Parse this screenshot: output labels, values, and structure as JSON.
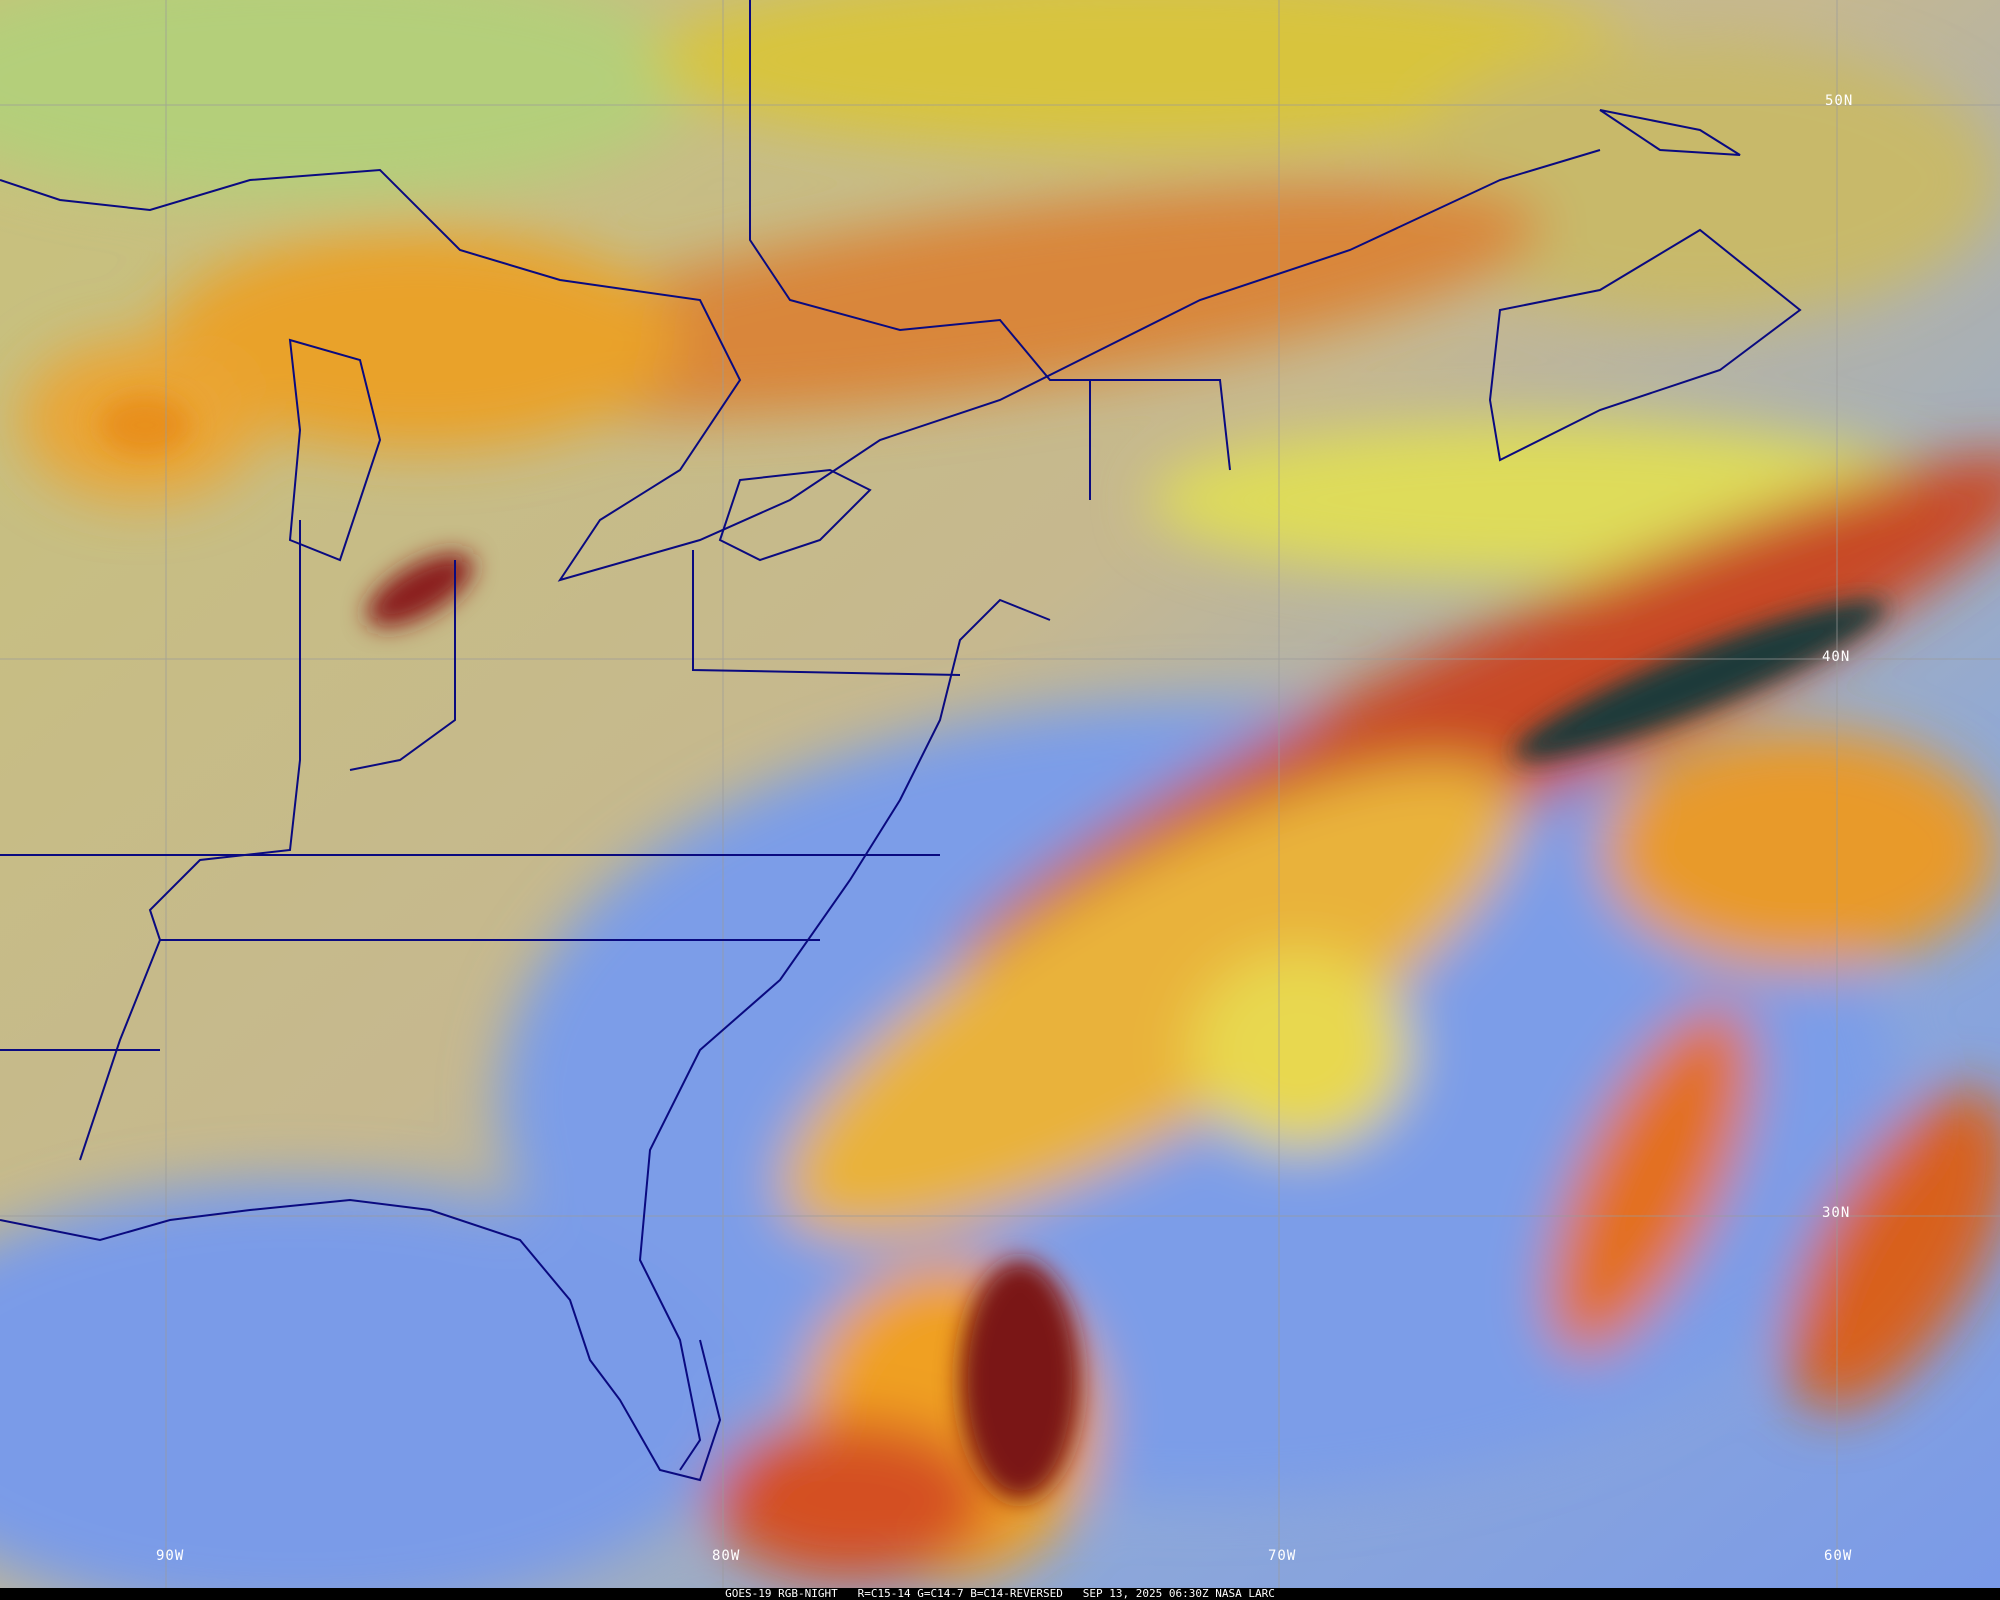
{
  "caption": "GOES-19 RGB-NIGHT   R=C15-14 G=C14-7 B=C14-REVERSED   SEP 13, 2025 06:30Z NASA LARC",
  "latitude_labels": [
    "50N",
    "40N",
    "30N"
  ],
  "longitude_labels": [
    "90W",
    "80W",
    "70W",
    "60W"
  ],
  "colors": {
    "land_clear": "#c9b98c",
    "ocean_clear": "#7f9fe6",
    "high_cloud": "#f2a21c",
    "mid_cloud": "#e1d64a",
    "thick_cold_cloud": "#8a1a1a",
    "low_cloud": "#a7c76a",
    "borders": "#0a0a80",
    "grid": "#9a9a9a"
  }
}
